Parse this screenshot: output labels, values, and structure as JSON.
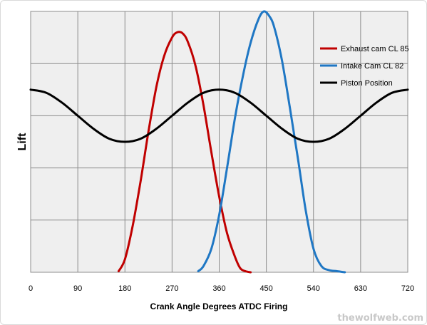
{
  "chart_data": {
    "type": "line",
    "title": "",
    "xlabel": "Crank Angle Degrees ATDC Firing",
    "ylabel": "Lift",
    "xlim": [
      0,
      720
    ],
    "ylim": [
      0,
      5
    ],
    "xticks": [
      0,
      90,
      180,
      270,
      360,
      450,
      540,
      630,
      720
    ],
    "grid": true,
    "legend_position": "top-right",
    "series": [
      {
        "name": "Exhaust cam CL 85",
        "color": "#c00000",
        "x": [
          168,
          180,
          195,
          210,
          225,
          240,
          255,
          270,
          280,
          290,
          300,
          315,
          330,
          345,
          360,
          375,
          390,
          400,
          410,
          420
        ],
        "y": [
          0.02,
          0.25,
          0.9,
          1.75,
          2.7,
          3.55,
          4.15,
          4.5,
          4.6,
          4.58,
          4.42,
          3.95,
          3.2,
          2.3,
          1.45,
          0.75,
          0.3,
          0.08,
          0.02,
          0.0
        ]
      },
      {
        "name": "Intake Cam CL 82",
        "color": "#1f77c4",
        "x": [
          320,
          330,
          345,
          360,
          375,
          390,
          405,
          420,
          435,
          445,
          455,
          465,
          480,
          495,
          510,
          525,
          540,
          555,
          570,
          585,
          600
        ],
        "y": [
          0.02,
          0.12,
          0.45,
          1.1,
          2.0,
          2.95,
          3.75,
          4.4,
          4.85,
          5.0,
          4.92,
          4.7,
          4.05,
          3.15,
          2.2,
          1.2,
          0.45,
          0.12,
          0.04,
          0.02,
          0.0
        ]
      },
      {
        "name": "Piston Position",
        "color": "#000000",
        "x": [
          0,
          30,
          60,
          90,
          120,
          150,
          180,
          210,
          240,
          270,
          300,
          330,
          360,
          390,
          420,
          450,
          480,
          510,
          540,
          570,
          600,
          630,
          660,
          690,
          720
        ],
        "y": [
          3.5,
          3.44,
          3.25,
          3.0,
          2.75,
          2.56,
          2.5,
          2.56,
          2.75,
          3.0,
          3.25,
          3.44,
          3.5,
          3.44,
          3.25,
          3.0,
          2.75,
          2.56,
          2.5,
          2.56,
          2.75,
          3.0,
          3.25,
          3.44,
          3.5
        ]
      }
    ]
  },
  "watermark": "thewolfweb.com"
}
